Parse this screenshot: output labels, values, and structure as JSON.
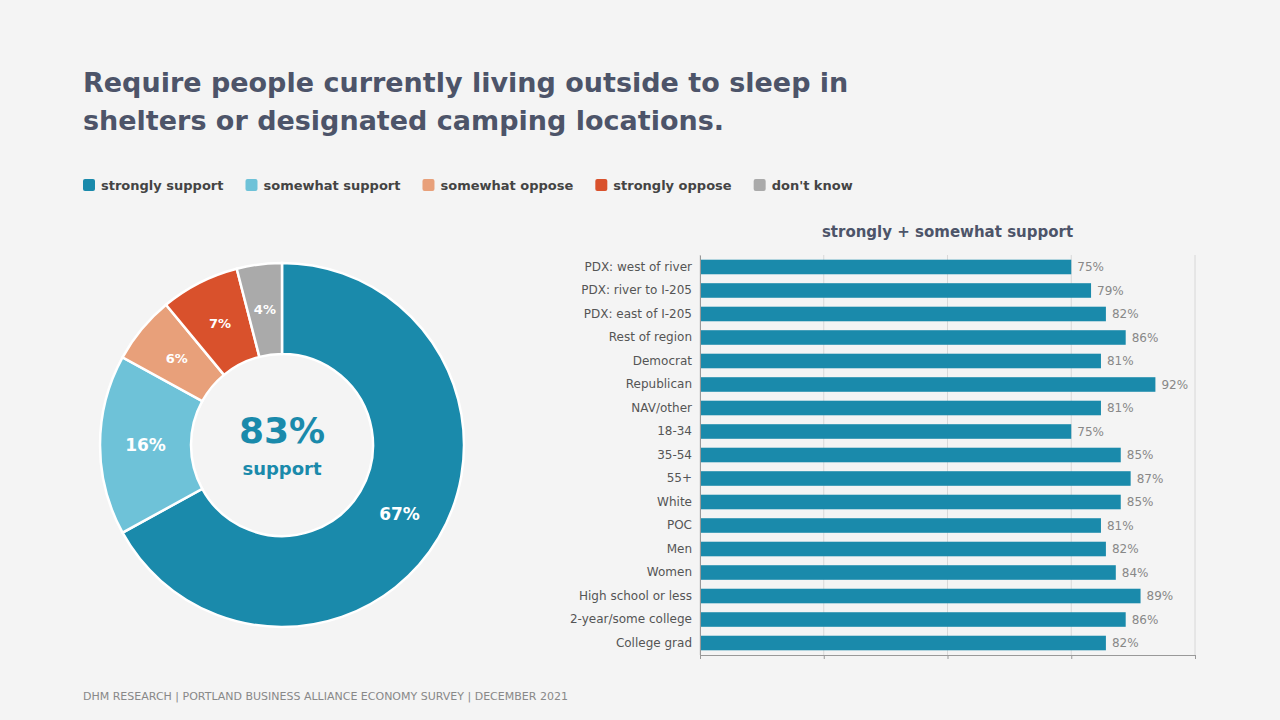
{
  "chart_data": [
    {
      "type": "pie",
      "title": "Require people currently living outside to sleep in",
      "subtitle": "shelters or designated camping locations.",
      "categories": [
        "strongly support",
        "somewhat support",
        "somewhat oppose",
        "strongly oppose",
        "don't know"
      ],
      "values": [
        67,
        16,
        6,
        7,
        4
      ],
      "value_labels": [
        "67%",
        "16%",
        "6%",
        "7%",
        "4%"
      ],
      "colors": [
        "#1a8aab",
        "#6ec2d8",
        "#e8a07a",
        "#d9512c",
        "#aaaaaa"
      ],
      "data_labels": true,
      "legend": "top",
      "annotations": [
        "83%",
        "support"
      ]
    },
    {
      "type": "bar",
      "title": "strongly + somewhat support",
      "orientation": "horizontal",
      "categories": [
        "PDX: west of river",
        "PDX: river to I-205",
        "PDX: east of I-205",
        "Rest of region",
        "Democrat",
        "Republican",
        "NAV/other",
        "18-34",
        "35-54",
        "55+",
        "White",
        "POC",
        "Men",
        "Women",
        "High school or less",
        "2-year/some college",
        "College grad"
      ],
      "values": [
        75,
        79,
        82,
        86,
        81,
        92,
        81,
        75,
        85,
        87,
        85,
        81,
        82,
        84,
        89,
        86,
        82
      ],
      "value_labels": [
        "75%",
        "79%",
        "82%",
        "86%",
        "81%",
        "92%",
        "81%",
        "75%",
        "85%",
        "87%",
        "85%",
        "81%",
        "82%",
        "84%",
        "89%",
        "86%",
        "82%"
      ],
      "color": "#1a8aab",
      "xlim": [
        0,
        100
      ],
      "xticks": [
        0,
        25,
        50,
        75,
        100
      ],
      "grid": true,
      "data_labels": true,
      "tick_labels": "y",
      "annotations": [
        "DHM RESEARCH | PORTLAND BUSINESS ALLIANCE ECONOMY SURVEY | DECEMBER 2021"
      ]
    }
  ]
}
